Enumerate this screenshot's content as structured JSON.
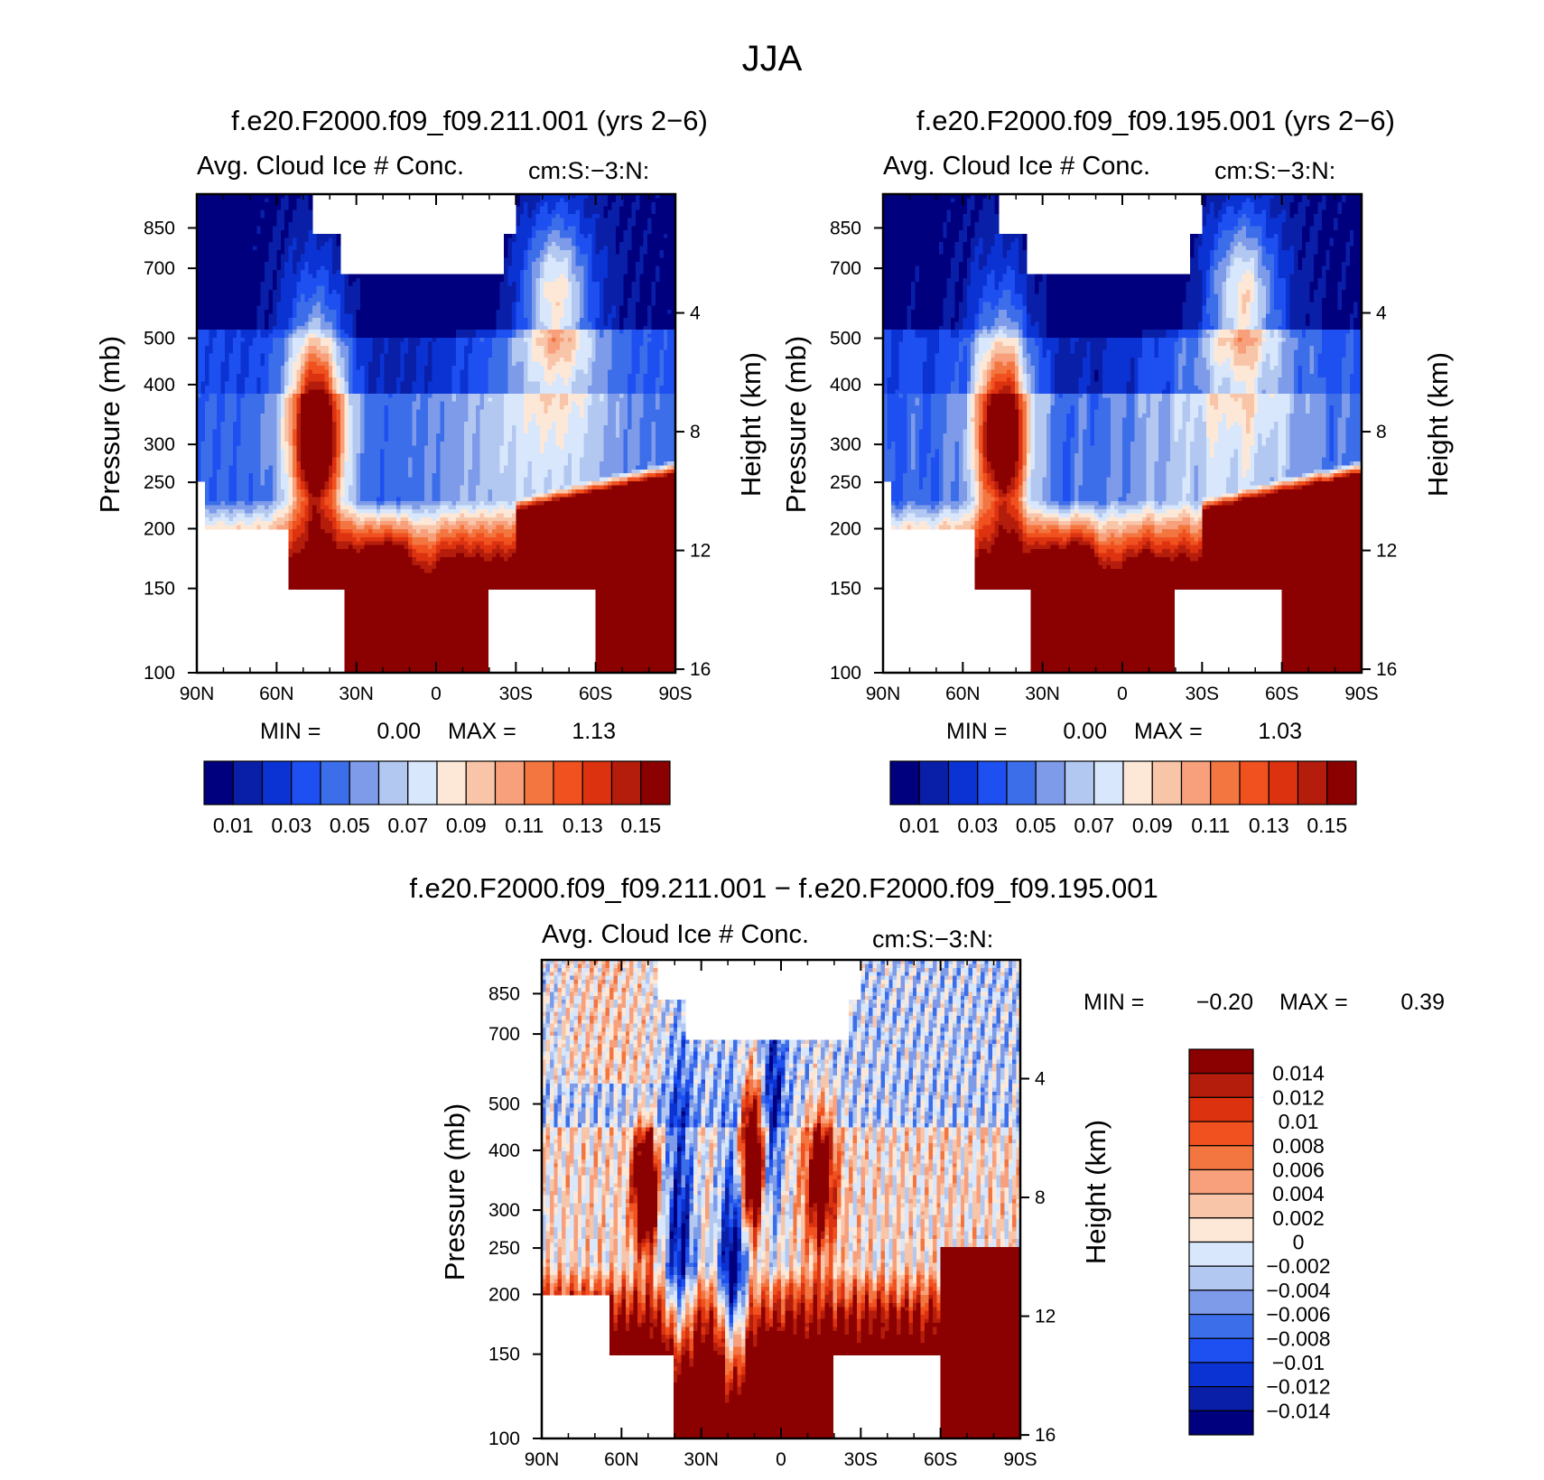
{
  "figure": {
    "title": "JJA",
    "colors": {
      "missing": "#ffffff",
      "axis": "#000000"
    }
  },
  "colorbars": {
    "abs": {
      "labels": [
        "0.01",
        "0.03",
        "0.05",
        "0.07",
        "0.09",
        "0.11",
        "0.13",
        "0.15"
      ],
      "colors": [
        "#00007f",
        "#0a1fa8",
        "#0b33d3",
        "#1e4ff0",
        "#3d6eea",
        "#7d9be9",
        "#b3c8f1",
        "#d8e7fb",
        "#fde8d8",
        "#f9c5a8",
        "#f7a07b",
        "#f3753f",
        "#f0511f",
        "#dd3210",
        "#b41d0b",
        "#8b0000"
      ]
    },
    "diff": {
      "labels": [
        "0.014",
        "0.012",
        "0.01",
        "0.008",
        "0.006",
        "0.004",
        "0.002",
        "0",
        "−0.002",
        "−0.004",
        "−0.006",
        "−0.008",
        "−0.01",
        "−0.012",
        "−0.014"
      ],
      "colors_top_to_bottom": [
        "#8b0000",
        "#b41d0b",
        "#dd3210",
        "#f0511f",
        "#f3753f",
        "#f7a07b",
        "#f9c5a8",
        "#fde8d8",
        "#d8e7fb",
        "#b3c8f1",
        "#7d9be9",
        "#3d6eea",
        "#1e4ff0",
        "#0b33d3",
        "#0a1fa8",
        "#00007f"
      ]
    }
  },
  "chart_data": [
    {
      "type": "heatmap",
      "title": "f.e20.F2000.f09_f09.211.001 (yrs 2−6)",
      "subtitle": "Avg. Cloud Ice # Conc.",
      "units": "cm:S:−3:N:",
      "xlabel": "",
      "ylabel": "Pressure (mb)",
      "ylabel_right": "Height (km)",
      "x_ticks": [
        "90N",
        "60N",
        "30N",
        "0",
        "30S",
        "60S",
        "90S"
      ],
      "y_ticks": [
        100,
        150,
        200,
        250,
        300,
        400,
        500,
        700,
        850
      ],
      "y_ticks_right": [
        16,
        12,
        8,
        4
      ],
      "xlim": [
        90,
        -90
      ],
      "ylim": [
        1000,
        100
      ],
      "y_scale": "log",
      "min_label": "MIN =",
      "min": "0.00",
      "max_label": "MAX =",
      "max": "1.13",
      "contour_levels": [
        0.01,
        0.02,
        0.03,
        0.04,
        0.05,
        0.06,
        0.07,
        0.08,
        0.09,
        0.1,
        0.11,
        0.12,
        0.13,
        0.14,
        0.15
      ],
      "colorbar": "abs"
    },
    {
      "type": "heatmap",
      "title": "f.e20.F2000.f09_f09.195.001 (yrs 2−6)",
      "subtitle": "Avg. Cloud Ice # Conc.",
      "units": "cm:S:−3:N:",
      "xlabel": "",
      "ylabel": "Pressure (mb)",
      "ylabel_right": "Height (km)",
      "x_ticks": [
        "90N",
        "60N",
        "30N",
        "0",
        "30S",
        "60S",
        "90S"
      ],
      "y_ticks": [
        100,
        150,
        200,
        250,
        300,
        400,
        500,
        700,
        850
      ],
      "y_ticks_right": [
        16,
        12,
        8,
        4
      ],
      "xlim": [
        90,
        -90
      ],
      "ylim": [
        1000,
        100
      ],
      "y_scale": "log",
      "min_label": "MIN =",
      "min": "0.00",
      "max_label": "MAX =",
      "max": "1.03",
      "contour_levels": [
        0.01,
        0.02,
        0.03,
        0.04,
        0.05,
        0.06,
        0.07,
        0.08,
        0.09,
        0.1,
        0.11,
        0.12,
        0.13,
        0.14,
        0.15
      ],
      "colorbar": "abs"
    },
    {
      "type": "heatmap",
      "title": "f.e20.F2000.f09_f09.211.001 − f.e20.F2000.f09_f09.195.001",
      "subtitle": "Avg. Cloud Ice # Conc.",
      "units": "cm:S:−3:N:",
      "xlabel": "",
      "ylabel": "Pressure (mb)",
      "ylabel_right": "Height (km)",
      "x_ticks": [
        "90N",
        "60N",
        "30N",
        "0",
        "30S",
        "60S",
        "90S"
      ],
      "y_ticks": [
        100,
        150,
        200,
        250,
        300,
        400,
        500,
        700,
        850
      ],
      "y_ticks_right": [
        16,
        12,
        8,
        4
      ],
      "xlim": [
        90,
        -90
      ],
      "ylim": [
        1000,
        100
      ],
      "y_scale": "log",
      "min_label": "MIN =",
      "min": "−0.20",
      "max_label": "MAX =",
      "max": "0.39",
      "contour_levels": [
        -0.014,
        -0.012,
        -0.01,
        -0.008,
        -0.006,
        -0.004,
        -0.002,
        0,
        0.002,
        0.004,
        0.006,
        0.008,
        0.01,
        0.012,
        0.014
      ],
      "colorbar": "diff"
    }
  ]
}
